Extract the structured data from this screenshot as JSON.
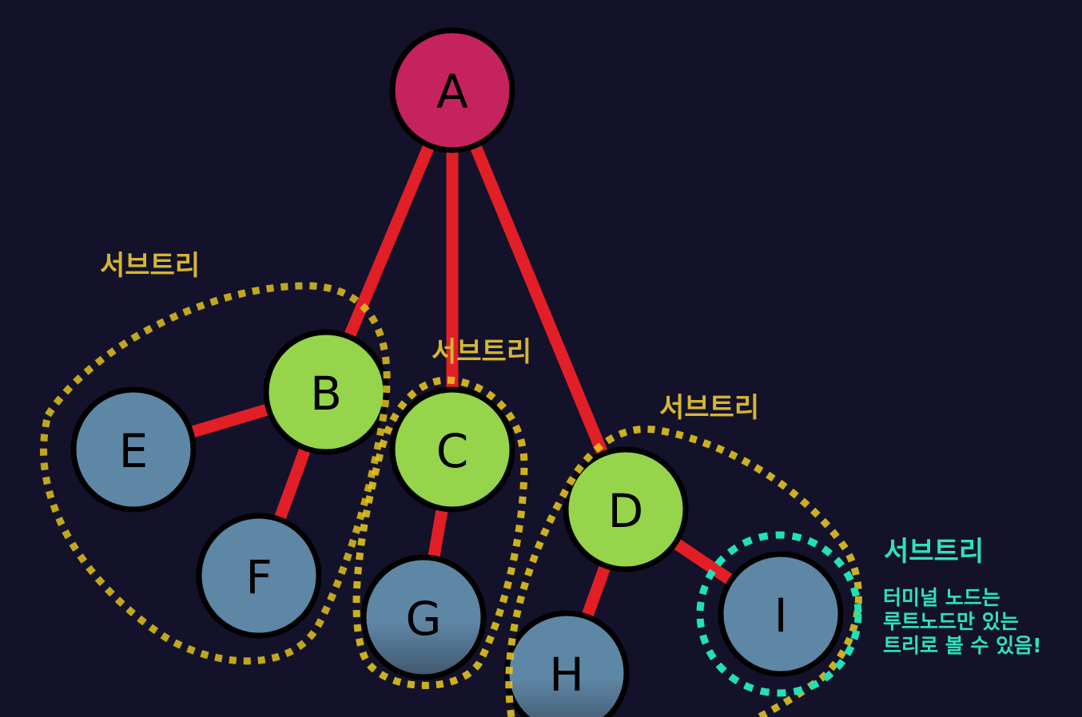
{
  "colors": {
    "background": "#13122a",
    "edge": "#e21f26",
    "root": "#c4235d",
    "internal": "#95d44b",
    "leaf": "#5e86a5",
    "subtree_outline": "#e2c21c",
    "subtree_label": "#d4b631",
    "terminal_outline": "#21e1b6",
    "terminal_label": "#2ee2b8"
  },
  "nodes": [
    {
      "id": "A",
      "label": "A",
      "kind": "root"
    },
    {
      "id": "B",
      "label": "B",
      "kind": "internal"
    },
    {
      "id": "C",
      "label": "C",
      "kind": "internal"
    },
    {
      "id": "D",
      "label": "D",
      "kind": "internal"
    },
    {
      "id": "E",
      "label": "E",
      "kind": "leaf"
    },
    {
      "id": "F",
      "label": "F",
      "kind": "leaf"
    },
    {
      "id": "G",
      "label": "G",
      "kind": "leaf"
    },
    {
      "id": "H",
      "label": "H",
      "kind": "leaf"
    },
    {
      "id": "I",
      "label": "I",
      "kind": "leaf"
    }
  ],
  "edges": [
    {
      "from": "A",
      "to": "B"
    },
    {
      "from": "A",
      "to": "C"
    },
    {
      "from": "A",
      "to": "D"
    },
    {
      "from": "B",
      "to": "E"
    },
    {
      "from": "B",
      "to": "F"
    },
    {
      "from": "C",
      "to": "G"
    },
    {
      "from": "D",
      "to": "H"
    },
    {
      "from": "D",
      "to": "I"
    }
  ],
  "subtrees": [
    {
      "id": "subtree-b",
      "label": "서브트리"
    },
    {
      "id": "subtree-c",
      "label": "서브트리"
    },
    {
      "id": "subtree-d",
      "label": "서브트리"
    },
    {
      "id": "subtree-i",
      "label": "서브트리"
    }
  ],
  "terminal_note": [
    "터미널 노드는",
    "루트노드만 있는",
    "트리로 볼 수 있음!"
  ]
}
